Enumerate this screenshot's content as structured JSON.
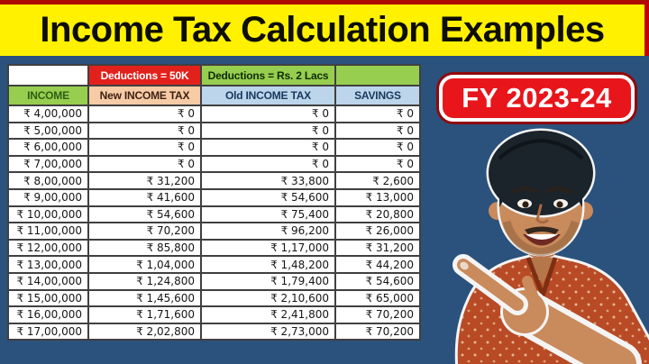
{
  "banner": {
    "title": "Income Tax Calculation Examples"
  },
  "badge": {
    "label": "FY 2023-24"
  },
  "table": {
    "deduction_headers": {
      "col1": "",
      "new_regime": "Deductions = 50K",
      "old_regime": "Deductions = Rs. 2 Lacs",
      "col4": ""
    },
    "columns": [
      "INCOME",
      "New INCOME TAX",
      "Old INCOME TAX",
      "SAVINGS"
    ],
    "rows": [
      [
        "₹ 4,00,000",
        "₹ 0",
        "₹ 0",
        "₹ 0"
      ],
      [
        "₹ 5,00,000",
        "₹ 0",
        "₹ 0",
        "₹ 0"
      ],
      [
        "₹ 6,00,000",
        "₹ 0",
        "₹ 0",
        "₹ 0"
      ],
      [
        "₹ 7,00,000",
        "₹ 0",
        "₹ 0",
        "₹ 0"
      ],
      [
        "₹ 8,00,000",
        "₹ 31,200",
        "₹ 33,800",
        "₹ 2,600"
      ],
      [
        "₹ 9,00,000",
        "₹ 41,600",
        "₹ 54,600",
        "₹ 13,000"
      ],
      [
        "₹ 10,00,000",
        "₹ 54,600",
        "₹ 75,400",
        "₹ 20,800"
      ],
      [
        "₹ 11,00,000",
        "₹ 70,200",
        "₹ 96,200",
        "₹ 26,000"
      ],
      [
        "₹ 12,00,000",
        "₹ 85,800",
        "₹ 1,17,000",
        "₹ 31,200"
      ],
      [
        "₹ 13,00,000",
        "₹ 1,04,000",
        "₹ 1,48,200",
        "₹ 44,200"
      ],
      [
        "₹ 14,00,000",
        "₹ 1,24,800",
        "₹ 1,79,400",
        "₹ 54,600"
      ],
      [
        "₹ 15,00,000",
        "₹ 1,45,600",
        "₹ 2,10,600",
        "₹ 65,000"
      ],
      [
        "₹ 16,00,000",
        "₹ 1,71,600",
        "₹ 2,41,800",
        "₹ 70,200"
      ],
      [
        "₹ 17,00,000",
        "₹ 2,02,800",
        "₹ 2,73,000",
        "₹ 70,200"
      ]
    ]
  },
  "person": {
    "icon": "presenter-pointing-photo"
  },
  "colors": {
    "page_bg": "#2A527C",
    "banner_bg": "#FFF100",
    "banner_border": "#C00000",
    "red_header": "#E3211C",
    "green_header": "#97CE4F",
    "peach_header": "#F6CBA6",
    "blue_header": "#BCD5EA",
    "badge_bg": "#E8151B"
  },
  "chart_data": {
    "type": "table",
    "title": "Income Tax Calculation Examples",
    "fiscal_year_label": "FY 2023-24",
    "columns": [
      "INCOME",
      "New INCOME TAX (Deductions = 50K)",
      "Old INCOME TAX (Deductions = Rs. 2 Lacs)",
      "SAVINGS"
    ],
    "rows": [
      [
        400000,
        0,
        0,
        0
      ],
      [
        500000,
        0,
        0,
        0
      ],
      [
        600000,
        0,
        0,
        0
      ],
      [
        700000,
        0,
        0,
        0
      ],
      [
        800000,
        31200,
        33800,
        2600
      ],
      [
        900000,
        41600,
        54600,
        13000
      ],
      [
        1000000,
        54600,
        75400,
        20800
      ],
      [
        1100000,
        70200,
        96200,
        26000
      ],
      [
        1200000,
        85800,
        117000,
        31200
      ],
      [
        1300000,
        104000,
        148200,
        44200
      ],
      [
        1400000,
        124800,
        179400,
        54600
      ],
      [
        1500000,
        145600,
        210600,
        65000
      ],
      [
        1600000,
        171600,
        241800,
        70200
      ],
      [
        1700000,
        202800,
        273000,
        70200
      ]
    ]
  }
}
